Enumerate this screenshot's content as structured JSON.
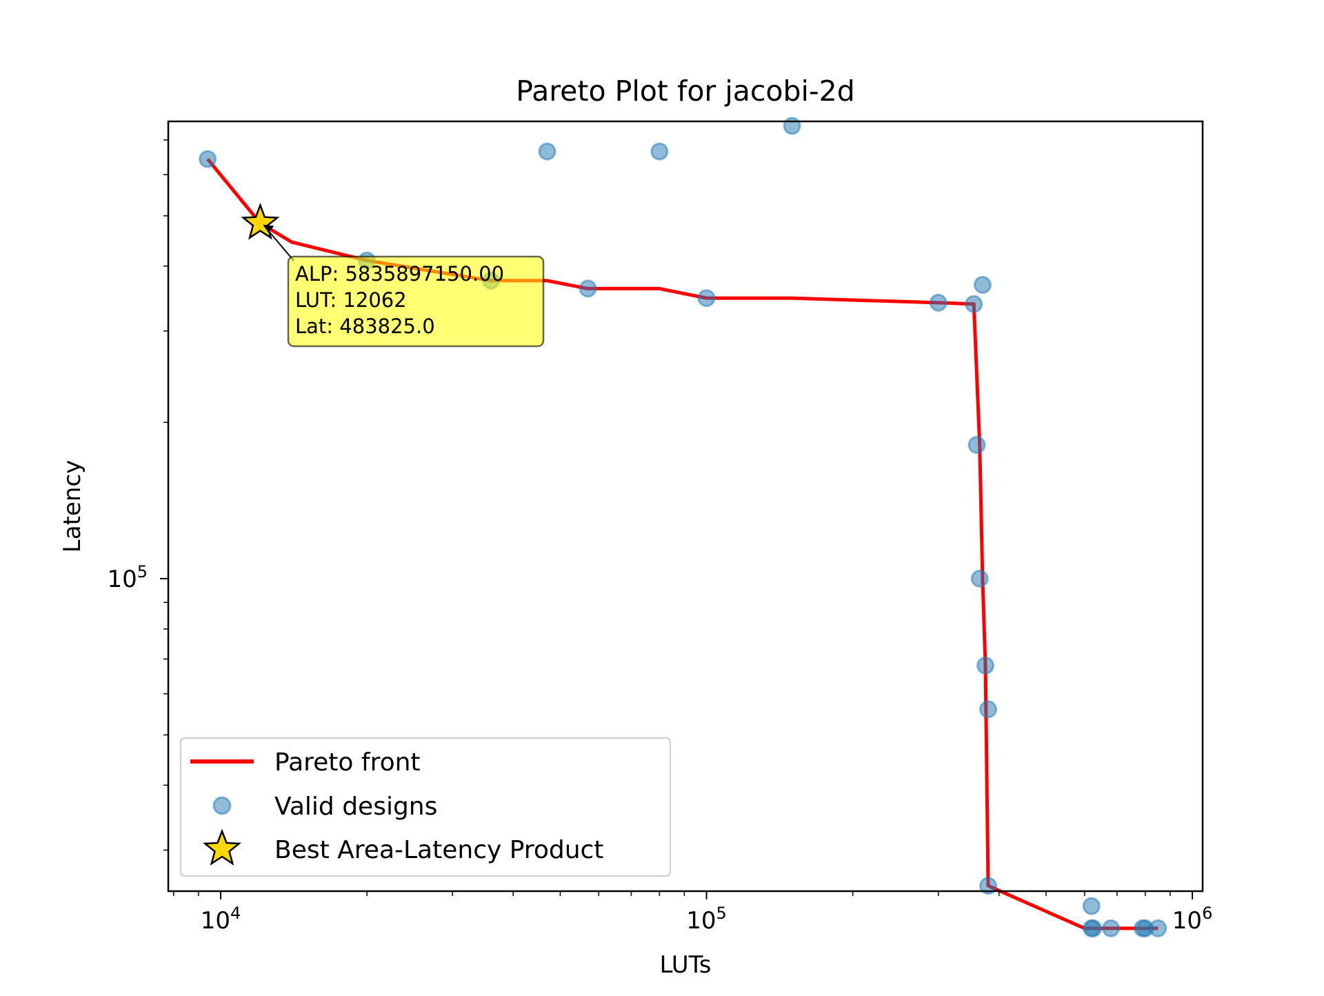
{
  "chart_data": {
    "type": "scatter",
    "title": "Pareto Plot for jacobi-2d",
    "xlabel": "LUTs",
    "ylabel": "Latency",
    "xscale": "log",
    "yscale": "log",
    "xlim": [
      7800,
      1050000
    ],
    "ylim": [
      25000,
      760000
    ],
    "grid": false,
    "legend_position": "lower-left",
    "x_ticks": [
      {
        "value": 10000,
        "label_base": "10",
        "label_exp": "4"
      },
      {
        "value": 100000,
        "label_base": "10",
        "label_exp": "5"
      },
      {
        "value": 1000000,
        "label_base": "10",
        "label_exp": "6"
      }
    ],
    "y_ticks": [
      {
        "value": 100000,
        "label_base": "10",
        "label_exp": "5"
      }
    ],
    "series": [
      {
        "name": "Pareto front",
        "kind": "line",
        "color": "#ff0000",
        "points": [
          [
            9400,
            643000
          ],
          [
            12062,
            483825
          ],
          [
            14000,
            445000
          ],
          [
            20000,
            410000
          ],
          [
            36000,
            375000
          ],
          [
            47000,
            375000
          ],
          [
            57000,
            362000
          ],
          [
            80000,
            362000
          ],
          [
            100000,
            347000
          ],
          [
            150000,
            347000
          ],
          [
            300000,
            340000
          ],
          [
            355000,
            338000
          ],
          [
            365000,
            181000
          ],
          [
            370000,
            100000
          ],
          [
            375000,
            68000
          ],
          [
            380000,
            25600
          ],
          [
            600000,
            21200
          ],
          [
            620000,
            21200
          ],
          [
            680000,
            21200
          ],
          [
            790000,
            21200
          ],
          [
            850000,
            21200
          ]
        ]
      },
      {
        "name": "Valid designs",
        "kind": "scatter",
        "color": "#1f77b4",
        "points": [
          [
            9400,
            643000
          ],
          [
            20000,
            410000
          ],
          [
            36000,
            375000
          ],
          [
            47000,
            665000
          ],
          [
            57000,
            362000
          ],
          [
            80000,
            665000
          ],
          [
            100000,
            347000
          ],
          [
            150000,
            745000
          ],
          [
            300000,
            340000
          ],
          [
            355000,
            338000
          ],
          [
            360000,
            181000
          ],
          [
            365000,
            100000
          ],
          [
            370000,
            368000
          ],
          [
            375000,
            68000
          ],
          [
            380000,
            56000
          ],
          [
            380000,
            25600
          ],
          [
            620000,
            23400
          ],
          [
            620000,
            21200
          ],
          [
            625000,
            21200
          ],
          [
            680000,
            21200
          ],
          [
            790000,
            21200
          ],
          [
            800000,
            21200
          ],
          [
            850000,
            21200
          ]
        ]
      },
      {
        "name": "Best Area-Latency Product",
        "kind": "marker",
        "color": "#ffd700",
        "points": [
          [
            12062,
            483825
          ]
        ]
      }
    ],
    "annotation": {
      "lines": [
        "ALP: 5835897150.00",
        "LUT: 12062",
        "Lat: 483825.0"
      ],
      "bg_color": "#ffff00",
      "target": [
        12062,
        483825
      ]
    }
  }
}
